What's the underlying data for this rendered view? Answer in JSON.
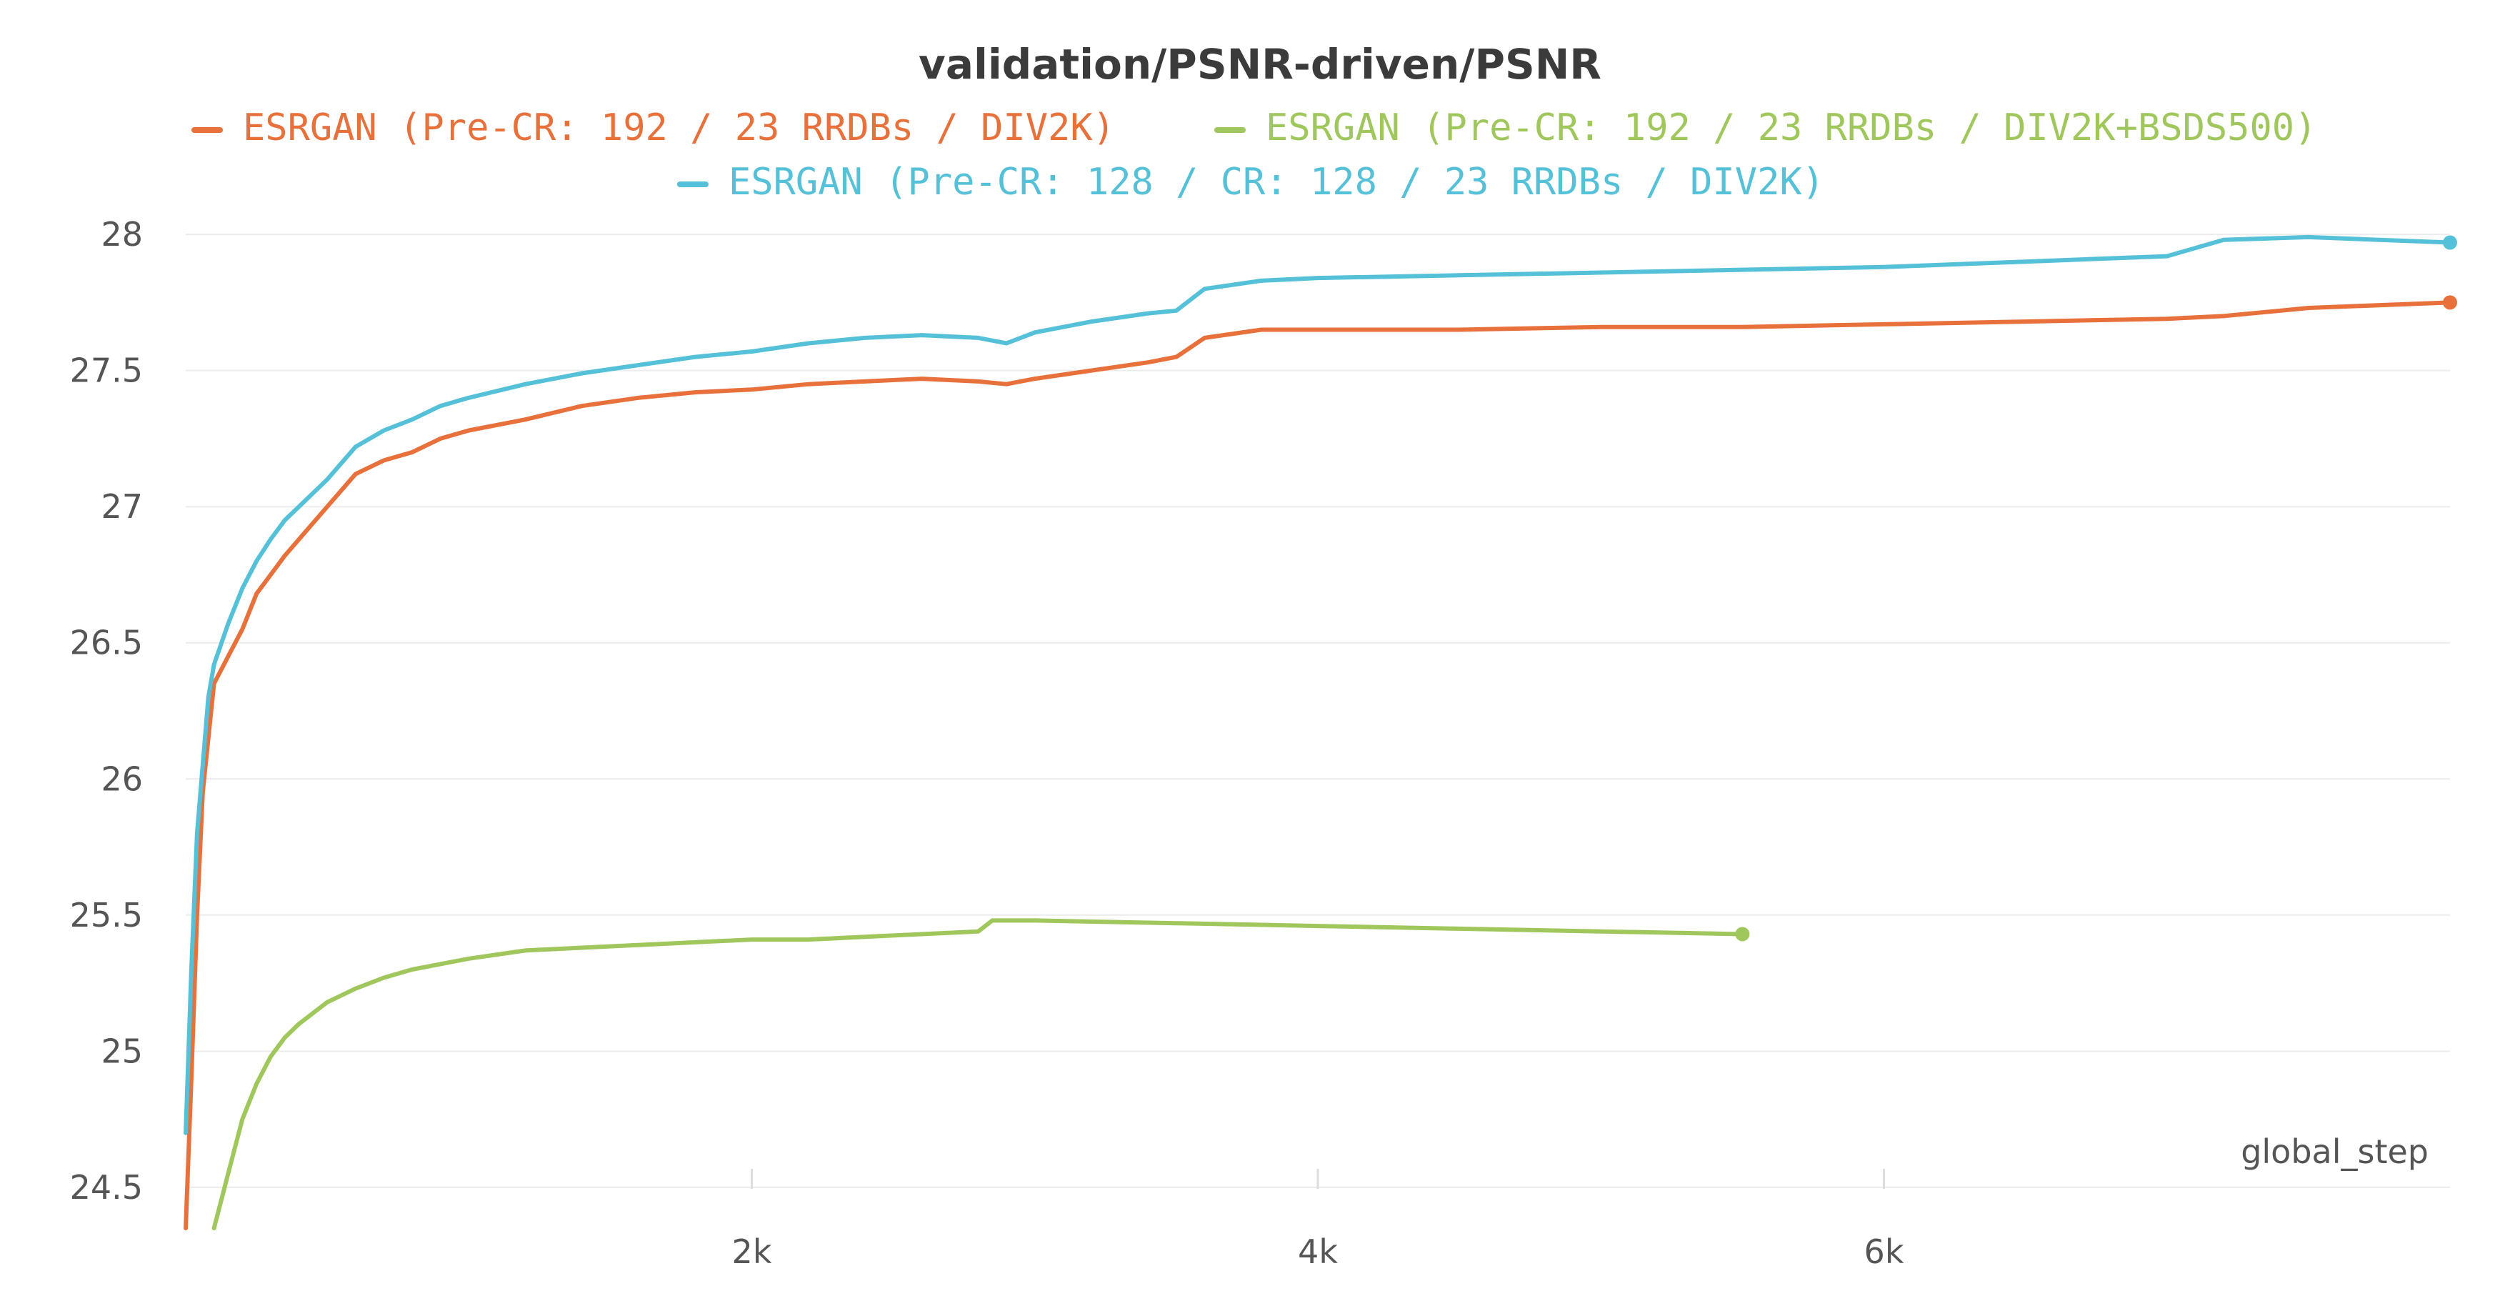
{
  "chart_data": {
    "type": "line",
    "title": "validation/PSNR-driven/PSNR",
    "xlabel": "global_step",
    "ylabel": "",
    "xlim": [
      0,
      8000
    ],
    "ylim": [
      24.4,
      28.1
    ],
    "x_ticks": [
      2000,
      4000,
      6000
    ],
    "x_tick_labels": [
      "2k",
      "4k",
      "6k"
    ],
    "y_ticks": [
      24.5,
      25,
      25.5,
      26,
      26.5,
      27,
      27.5,
      28
    ],
    "y_tick_labels": [
      "24.5",
      "25",
      "25.5",
      "26",
      "26.5",
      "27",
      "27.5",
      "28"
    ],
    "grid": true,
    "legend_position": "top-center",
    "series": [
      {
        "name": "ESRGAN (Pre-CR: 192 / 23 RRDBs / DIV2K)",
        "color": "#e8703a",
        "x": [
          0,
          20,
          40,
          60,
          80,
          100,
          150,
          200,
          250,
          300,
          350,
          400,
          500,
          600,
          700,
          800,
          900,
          1000,
          1200,
          1400,
          1600,
          1800,
          2000,
          2200,
          2400,
          2600,
          2800,
          2900,
          3000,
          3200,
          3400,
          3500,
          3600,
          3800,
          4000,
          4500,
          5000,
          5500,
          6000,
          6500,
          7000,
          7200,
          7500,
          8000
        ],
        "y": [
          24.35,
          24.9,
          25.5,
          25.95,
          26.15,
          26.35,
          26.45,
          26.55,
          26.68,
          26.75,
          26.82,
          26.88,
          27.0,
          27.12,
          27.17,
          27.2,
          27.25,
          27.28,
          27.32,
          27.37,
          27.4,
          27.42,
          27.43,
          27.45,
          27.46,
          27.47,
          27.46,
          27.45,
          27.47,
          27.5,
          27.53,
          27.55,
          27.62,
          27.65,
          27.65,
          27.65,
          27.66,
          27.66,
          27.67,
          27.68,
          27.69,
          27.7,
          27.73,
          27.75
        ]
      },
      {
        "name": "ESRGAN (Pre-CR: 192 / 23 RRDBs / DIV2K+BSDS500)",
        "color": "#a0c75c",
        "x": [
          100,
          150,
          200,
          250,
          300,
          350,
          400,
          500,
          600,
          700,
          800,
          900,
          1000,
          1200,
          1400,
          1600,
          1800,
          2000,
          2200,
          2400,
          2600,
          2800,
          2850,
          3000,
          3500,
          4000,
          4500,
          5000,
          5500
        ],
        "y": [
          24.35,
          24.55,
          24.75,
          24.88,
          24.98,
          25.05,
          25.1,
          25.18,
          25.23,
          25.27,
          25.3,
          25.32,
          25.34,
          25.37,
          25.38,
          25.39,
          25.4,
          25.41,
          25.41,
          25.42,
          25.43,
          25.44,
          25.48,
          25.48,
          25.47,
          25.46,
          25.45,
          25.44,
          25.43
        ]
      },
      {
        "name": "ESRGAN (Pre-CR: 128 / CR: 128 / 23 RRDBs / DIV2K)",
        "color": "#55c1d8",
        "x": [
          0,
          20,
          40,
          60,
          80,
          100,
          150,
          200,
          250,
          300,
          350,
          400,
          500,
          600,
          700,
          800,
          900,
          1000,
          1200,
          1400,
          1600,
          1800,
          2000,
          2200,
          2400,
          2600,
          2800,
          2900,
          3000,
          3200,
          3400,
          3500,
          3600,
          3800,
          4000,
          4500,
          5000,
          5500,
          6000,
          6500,
          7000,
          7200,
          7500,
          8000
        ],
        "y": [
          24.7,
          25.3,
          25.8,
          26.05,
          26.3,
          26.42,
          26.57,
          26.7,
          26.8,
          26.88,
          26.95,
          27.0,
          27.1,
          27.22,
          27.28,
          27.32,
          27.37,
          27.4,
          27.45,
          27.49,
          27.52,
          27.55,
          27.57,
          27.6,
          27.62,
          27.63,
          27.62,
          27.6,
          27.64,
          27.68,
          27.71,
          27.72,
          27.8,
          27.83,
          27.84,
          27.85,
          27.86,
          27.87,
          27.88,
          27.9,
          27.92,
          27.98,
          27.99,
          27.97
        ]
      }
    ]
  }
}
